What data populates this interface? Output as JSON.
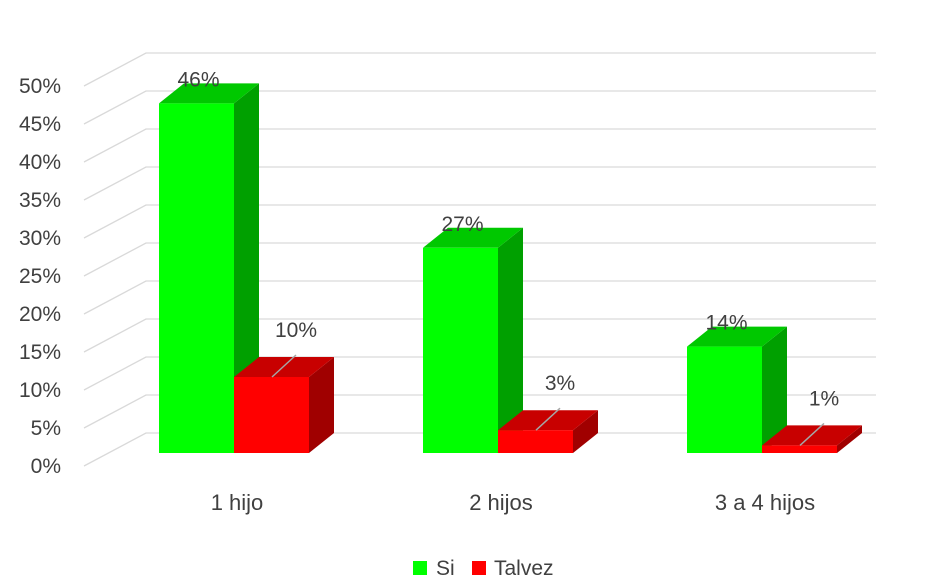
{
  "chart_data": {
    "type": "bar",
    "categories": [
      "1 hijo",
      "2 hijos",
      "3 a 4 hijos"
    ],
    "series": [
      {
        "name": "Si",
        "values": [
          46,
          27,
          14
        ],
        "labels": [
          "46%",
          "27%",
          "14%"
        ],
        "color": "#00FF00",
        "side_color": "#00A000",
        "top_color": "#00C800"
      },
      {
        "name": "Talvez",
        "values": [
          10,
          3,
          1
        ],
        "labels": [
          "10%",
          "3%",
          "1%"
        ],
        "color": "#FF0000",
        "side_color": "#A00000",
        "top_color": "#C80000"
      }
    ],
    "y_ticks": [
      "0%",
      "5%",
      "10%",
      "15%",
      "20%",
      "25%",
      "30%",
      "35%",
      "40%",
      "45%",
      "50%"
    ],
    "ylim": [
      0,
      50
    ],
    "grid": true,
    "legend_position": "bottom",
    "three_d": true,
    "title": "",
    "xlabel": "",
    "ylabel": ""
  }
}
